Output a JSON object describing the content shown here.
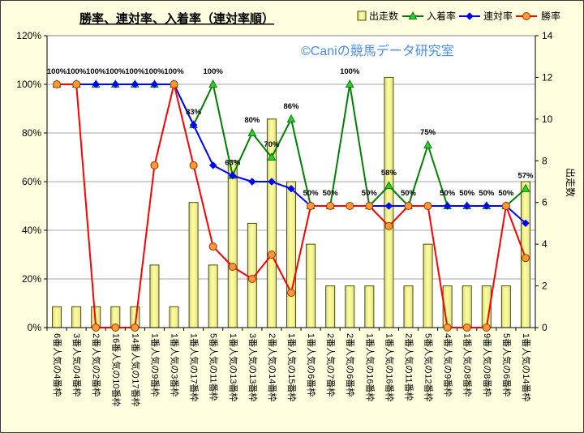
{
  "chart_data": {
    "type": "bar",
    "title": "勝率、連対率、入着率（連対率順）",
    "annotation": "©Caniの競馬データ研究室",
    "categories": [
      "6番人気の4番枠",
      "3番人気の4番枠",
      "2番人気の2番枠",
      "16番人気の10番枠",
      "14番人気の17番枠",
      "1番人気の9番枠",
      "1番人気の3番枠",
      "1番人気の17番枠",
      "5番人気の11番枠",
      "1番人気の13番枠",
      "3番人気の13番枠",
      "2番人気の14番枠",
      "1番人気の15番枠",
      "1番人気の6番枠",
      "2番人気の7番枠",
      "2番人気の6番枠",
      "1番人気の16番枠",
      "1番人気の16番枠",
      "2番人気の11番枠",
      "5番人気の12番枠",
      "4番人気の9番枠",
      "1番人気の8番枠",
      "9番人気の8番枠",
      "5番人気の6番枠",
      "1番人気の14番枠"
    ],
    "series": [
      {
        "name": "出走数",
        "type": "bar",
        "axis": "y_right",
        "values": [
          1,
          1,
          1,
          1,
          1,
          3,
          1,
          6,
          3,
          8,
          5,
          10,
          7,
          4,
          2,
          2,
          2,
          12,
          2,
          4,
          2,
          2,
          2,
          2,
          7
        ],
        "color": "#FFFF99"
      },
      {
        "name": "入着率",
        "type": "line",
        "axis": "y_left",
        "values": [
          100,
          100,
          100,
          100,
          100,
          100,
          100,
          83.3,
          100,
          62.5,
          80,
          70,
          85.7,
          50,
          50,
          100,
          50,
          58.3,
          50,
          75,
          50,
          50,
          50,
          50,
          57.1
        ],
        "color": "#008000",
        "marker": "triangle",
        "marker_fill": "#33CC33",
        "data_labels": [
          "100%",
          "100%",
          "100%",
          "100%",
          "100%",
          "100%",
          "100%",
          "83%",
          "100%",
          "63%",
          "80%",
          "70%",
          "86%",
          "50%",
          "50%",
          "100%",
          "50%",
          "58%",
          "50%",
          "75%",
          "50%",
          "50%",
          "50%",
          "50%",
          "57%"
        ]
      },
      {
        "name": "連対率",
        "type": "line",
        "axis": "y_left",
        "values": [
          100,
          100,
          100,
          100,
          100,
          100,
          100,
          83.3,
          66.7,
          62.5,
          60,
          60,
          57.1,
          50,
          50,
          50,
          50,
          50,
          50,
          50,
          50,
          50,
          50,
          50,
          42.9
        ],
        "color": "#0000FF",
        "marker": "diamond",
        "marker_fill": "#0000FF"
      },
      {
        "name": "勝率",
        "type": "line",
        "axis": "y_left",
        "values": [
          100,
          100,
          0,
          0,
          0,
          66.7,
          100,
          66.7,
          33.3,
          25,
          20,
          30,
          14.3,
          50,
          50,
          50,
          50,
          41.7,
          50,
          50,
          0,
          0,
          0,
          50,
          28.6
        ],
        "color": "#FF0000",
        "marker": "circle",
        "marker_fill": "#FF9933",
        "marker_edge": "#993300"
      }
    ],
    "y_left": {
      "range": [
        0,
        120
      ],
      "ticks": [
        0,
        20,
        40,
        60,
        80,
        100,
        120
      ],
      "tick_labels": [
        "0%",
        "20%",
        "40%",
        "60%",
        "80%",
        "100%",
        "120%"
      ]
    },
    "y_right": {
      "label": "出走数",
      "range": [
        0,
        14
      ],
      "ticks": [
        0,
        2,
        4,
        6,
        8,
        10,
        12,
        14
      ],
      "tick_labels": [
        "0",
        "2",
        "4",
        "6",
        "8",
        "10",
        "12",
        "14"
      ]
    },
    "legend": {
      "position": "top-right"
    },
    "grid": true
  }
}
